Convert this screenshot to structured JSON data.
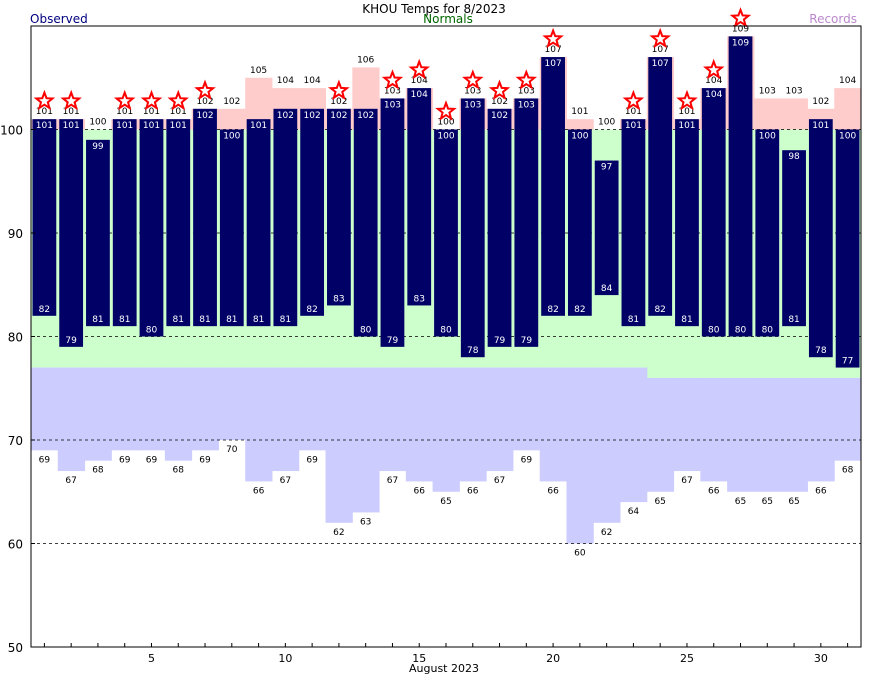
{
  "header": {
    "title": "KHOU Temps for 8/2023",
    "observed_label": "Observed",
    "normals_label": "Normals",
    "records_label": "Records"
  },
  "chart_data": {
    "type": "bar",
    "title": "KHOU Temps for 8/2023",
    "xlabel": "August 2023",
    "ylabel": "",
    "ylim": [
      50,
      110
    ],
    "yticks": [
      50,
      60,
      70,
      80,
      90,
      100
    ],
    "xticks": [
      5,
      10,
      15,
      20,
      25,
      30
    ],
    "grid": true,
    "days": [
      1,
      2,
      3,
      4,
      5,
      6,
      7,
      8,
      9,
      10,
      11,
      12,
      13,
      14,
      15,
      16,
      17,
      18,
      19,
      20,
      21,
      22,
      23,
      24,
      25,
      26,
      27,
      28,
      29,
      30,
      31
    ],
    "series": [
      {
        "name": "Observed",
        "key": "obs_high",
        "values": [
          101,
          101,
          99,
          101,
          101,
          101,
          102,
          100,
          101,
          102,
          102,
          102,
          102,
          103,
          104,
          100,
          103,
          102,
          103,
          107,
          100,
          97,
          101,
          107,
          101,
          104,
          109,
          100,
          98,
          101,
          100
        ]
      },
      {
        "name": "Observed",
        "key": "obs_low",
        "values": [
          82,
          79,
          81,
          81,
          80,
          81,
          81,
          81,
          81,
          81,
          82,
          83,
          80,
          79,
          83,
          80,
          78,
          79,
          79,
          82,
          82,
          84,
          81,
          82,
          81,
          80,
          80,
          80,
          81,
          78,
          77
        ]
      },
      {
        "name": "Records",
        "key": "record_high",
        "values": [
          101,
          101,
          100,
          101,
          101,
          101,
          102,
          102,
          105,
          104,
          104,
          102,
          106,
          103,
          104,
          100,
          103,
          102,
          103,
          107,
          101,
          100,
          101,
          107,
          101,
          104,
          109,
          103,
          103,
          102,
          104
        ]
      },
      {
        "name": "Records",
        "key": "record_low",
        "values": [
          69,
          67,
          68,
          69,
          69,
          68,
          69,
          70,
          66,
          67,
          69,
          62,
          63,
          67,
          66,
          65,
          66,
          67,
          69,
          66,
          60,
          62,
          64,
          65,
          67,
          66,
          65,
          65,
          65,
          66,
          68
        ]
      },
      {
        "name": "Normals",
        "key": "normal_high",
        "values": [
          100,
          100,
          100,
          100,
          100,
          100,
          100,
          100,
          100,
          100,
          100,
          100,
          100,
          100,
          100,
          100,
          100,
          100,
          100,
          100,
          100,
          100,
          100,
          100,
          100,
          100,
          100,
          100,
          100,
          100,
          100
        ]
      },
      {
        "name": "Normals",
        "key": "normal_low",
        "values": [
          77,
          77,
          77,
          77,
          77,
          77,
          77,
          77,
          77,
          77,
          77,
          77,
          77,
          77,
          77,
          77,
          77,
          77,
          77,
          77,
          77,
          77,
          77,
          76,
          76,
          76,
          76,
          76,
          76,
          76,
          76
        ]
      }
    ],
    "record_set_days": [
      1,
      2,
      4,
      5,
      6,
      7,
      12,
      14,
      15,
      16,
      17,
      18,
      19,
      20,
      23,
      24,
      25,
      26,
      27
    ],
    "colors": {
      "observed": "#000066",
      "normals": "#ccffcc",
      "records_high": "#ffcccc",
      "records_low": "#ccccff",
      "record_star": "#ff0000",
      "title_observed": "#000080",
      "title_normals": "#006600",
      "title_records": "#bb88cc"
    }
  }
}
